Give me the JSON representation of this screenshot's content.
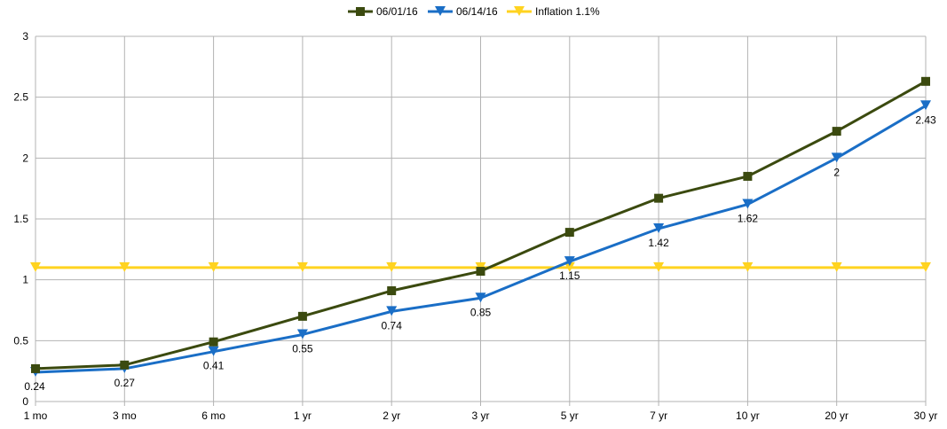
{
  "chart_data": {
    "type": "line",
    "title": "",
    "xlabel": "",
    "ylabel": "",
    "categories": [
      "1 mo",
      "3 mo",
      "6 mo",
      "1 yr",
      "2 yr",
      "3 yr",
      "5 yr",
      "7 yr",
      "10 yr",
      "20 yr",
      "30 yr"
    ],
    "ylim": [
      0,
      3
    ],
    "yticks": [
      "0",
      "0.5",
      "1",
      "1.5",
      "2",
      "2.5",
      "3"
    ],
    "grid": true,
    "legend_position": "top-center",
    "series": [
      {
        "name": "06/01/16",
        "color": "#3b4a0f",
        "marker": "square",
        "values": [
          0.27,
          0.3,
          0.49,
          0.7,
          0.91,
          1.07,
          1.39,
          1.67,
          1.85,
          2.22,
          2.63
        ]
      },
      {
        "name": "06/14/16",
        "color": "#1a6ec6",
        "marker": "triangle-down",
        "values": [
          0.24,
          0.27,
          0.41,
          0.55,
          0.74,
          0.85,
          1.15,
          1.42,
          1.62,
          2,
          2.43
        ],
        "data_labels": [
          "0.24",
          "0.27",
          "0.41",
          "0.55",
          "0.74",
          "0.85",
          "1.15",
          "1.42",
          "1.62",
          "2",
          "2.43"
        ]
      },
      {
        "name": "Inflation 1.1%",
        "color": "#ffd320",
        "marker": "triangle-down",
        "values": [
          1.1,
          1.1,
          1.1,
          1.1,
          1.1,
          1.1,
          1.1,
          1.1,
          1.1,
          1.1,
          1.1
        ]
      }
    ]
  }
}
